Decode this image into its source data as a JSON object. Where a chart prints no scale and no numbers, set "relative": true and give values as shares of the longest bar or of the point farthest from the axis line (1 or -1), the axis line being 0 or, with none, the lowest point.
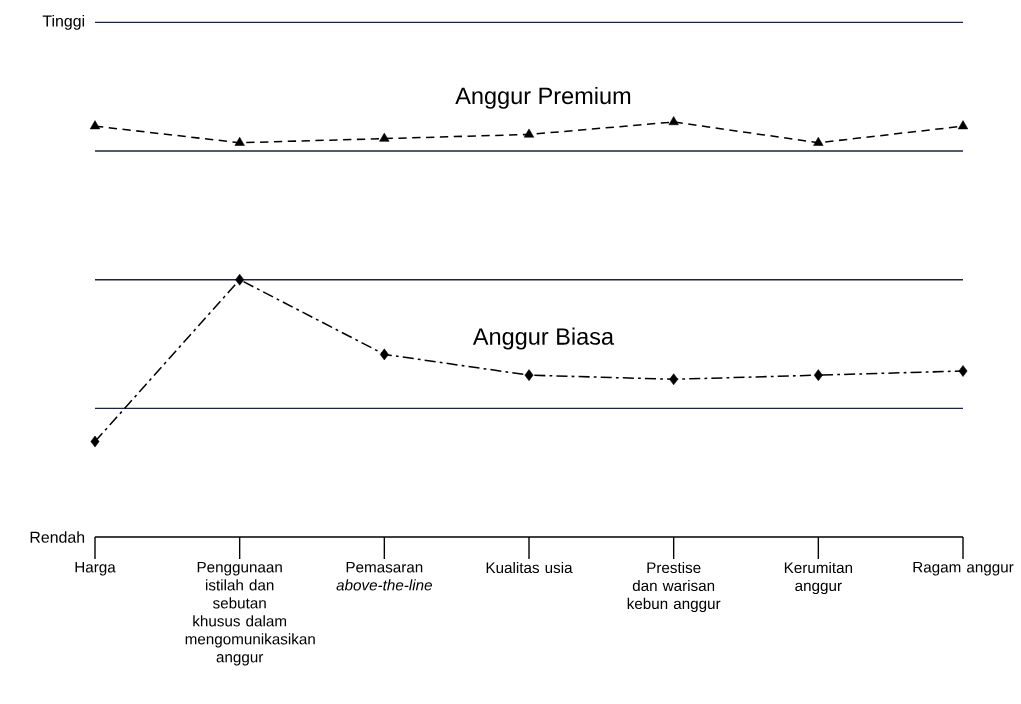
{
  "chart_data": {
    "type": "line",
    "relative": true,
    "categories": [
      "Harga",
      "Penggunaan istilah dan sebutan khusus dalam mengomunikasikan anggur",
      "Pemasaran *above-the-line*",
      "Kualitas usia",
      "Prestise dan warisan kebun anggur",
      "Kerumitan anggur",
      "Ragam anggur"
    ],
    "series": [
      {
        "name": "Anggur Premium",
        "color": "#000000",
        "marker": "triangle",
        "line_style": "dashed",
        "values": [
          0.99,
          0.95,
          0.96,
          0.97,
          1.0,
          0.95,
          0.99
        ]
      },
      {
        "name": "Anggur Biasa",
        "color": "#000000",
        "marker": "diamond",
        "line_style": "dashdot",
        "values": [
          0.23,
          0.62,
          0.44,
          0.39,
          0.38,
          0.39,
          0.4
        ]
      }
    ],
    "ref_lines": [
      {
        "axis": "y",
        "value": 1.24,
        "color": "#1c2340"
      },
      {
        "axis": "y",
        "value": 0.93,
        "color": "#1c2340"
      },
      {
        "axis": "y",
        "value": 0.62,
        "color": "#1c2340"
      },
      {
        "axis": "y",
        "value": 0.31,
        "color": "#1c2340"
      }
    ],
    "annotations": [
      "Tinggi",
      "Rendah"
    ]
  }
}
